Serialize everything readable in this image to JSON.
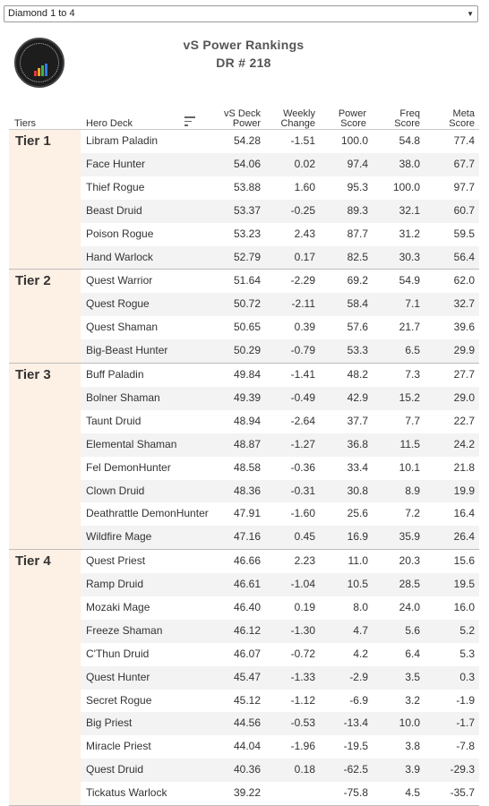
{
  "filter": {
    "selected": "Diamond 1 to 4"
  },
  "header": {
    "title": "vS Power Rankings",
    "subtitle": "DR # 218"
  },
  "columns": {
    "tiers": "Tiers",
    "deck": "Hero Deck",
    "power_l1": "vS Deck",
    "power_l2": "Power",
    "change_l1": "Weekly",
    "change_l2": "Change",
    "pscore_l1": "Power",
    "pscore_l2": "Score",
    "freq_l1": "Freq",
    "freq_l2": "Score",
    "meta_l1": "Meta",
    "meta_l2": "Score"
  },
  "icons": {
    "sort": "sort-icon",
    "dropdown": "chevron-down-icon",
    "logo": "vs-logo-icon"
  },
  "colors": {
    "tier_bg": "#fdf0e4",
    "alt_row": "#f3f3f3"
  },
  "tiers": [
    {
      "name": "Tier 1",
      "decks": [
        {
          "deck": "Libram Paladin",
          "power": "54.28",
          "change": "-1.51",
          "power_score": "100.0",
          "freq": "54.8",
          "meta": "77.4"
        },
        {
          "deck": "Face Hunter",
          "power": "54.06",
          "change": "0.02",
          "power_score": "97.4",
          "freq": "38.0",
          "meta": "67.7"
        },
        {
          "deck": "Thief Rogue",
          "power": "53.88",
          "change": "1.60",
          "power_score": "95.3",
          "freq": "100.0",
          "meta": "97.7"
        },
        {
          "deck": "Beast Druid",
          "power": "53.37",
          "change": "-0.25",
          "power_score": "89.3",
          "freq": "32.1",
          "meta": "60.7"
        },
        {
          "deck": "Poison Rogue",
          "power": "53.23",
          "change": "2.43",
          "power_score": "87.7",
          "freq": "31.2",
          "meta": "59.5"
        },
        {
          "deck": "Hand Warlock",
          "power": "52.79",
          "change": "0.17",
          "power_score": "82.5",
          "freq": "30.3",
          "meta": "56.4"
        }
      ]
    },
    {
      "name": "Tier 2",
      "decks": [
        {
          "deck": "Quest Warrior",
          "power": "51.64",
          "change": "-2.29",
          "power_score": "69.2",
          "freq": "54.9",
          "meta": "62.0"
        },
        {
          "deck": "Quest Rogue",
          "power": "50.72",
          "change": "-2.11",
          "power_score": "58.4",
          "freq": "7.1",
          "meta": "32.7"
        },
        {
          "deck": "Quest Shaman",
          "power": "50.65",
          "change": "0.39",
          "power_score": "57.6",
          "freq": "21.7",
          "meta": "39.6"
        },
        {
          "deck": "Big-Beast Hunter",
          "power": "50.29",
          "change": "-0.79",
          "power_score": "53.3",
          "freq": "6.5",
          "meta": "29.9"
        }
      ]
    },
    {
      "name": "Tier 3",
      "decks": [
        {
          "deck": "Buff Paladin",
          "power": "49.84",
          "change": "-1.41",
          "power_score": "48.2",
          "freq": "7.3",
          "meta": "27.7"
        },
        {
          "deck": "Bolner Shaman",
          "power": "49.39",
          "change": "-0.49",
          "power_score": "42.9",
          "freq": "15.2",
          "meta": "29.0"
        },
        {
          "deck": "Taunt Druid",
          "power": "48.94",
          "change": "-2.64",
          "power_score": "37.7",
          "freq": "7.7",
          "meta": "22.7"
        },
        {
          "deck": "Elemental Shaman",
          "power": "48.87",
          "change": "-1.27",
          "power_score": "36.8",
          "freq": "11.5",
          "meta": "24.2"
        },
        {
          "deck": "Fel DemonHunter",
          "power": "48.58",
          "change": "-0.36",
          "power_score": "33.4",
          "freq": "10.1",
          "meta": "21.8"
        },
        {
          "deck": "Clown Druid",
          "power": "48.36",
          "change": "-0.31",
          "power_score": "30.8",
          "freq": "8.9",
          "meta": "19.9"
        },
        {
          "deck": "Deathrattle DemonHunter",
          "power": "47.91",
          "change": "-1.60",
          "power_score": "25.6",
          "freq": "7.2",
          "meta": "16.4"
        },
        {
          "deck": "Wildfire Mage",
          "power": "47.16",
          "change": "0.45",
          "power_score": "16.9",
          "freq": "35.9",
          "meta": "26.4"
        }
      ]
    },
    {
      "name": "Tier 4",
      "decks": [
        {
          "deck": "Quest Priest",
          "power": "46.66",
          "change": "2.23",
          "power_score": "11.0",
          "freq": "20.3",
          "meta": "15.6"
        },
        {
          "deck": "Ramp Druid",
          "power": "46.61",
          "change": "-1.04",
          "power_score": "10.5",
          "freq": "28.5",
          "meta": "19.5"
        },
        {
          "deck": "Mozaki Mage",
          "power": "46.40",
          "change": "0.19",
          "power_score": "8.0",
          "freq": "24.0",
          "meta": "16.0"
        },
        {
          "deck": "Freeze Shaman",
          "power": "46.12",
          "change": "-1.30",
          "power_score": "4.7",
          "freq": "5.6",
          "meta": "5.2"
        },
        {
          "deck": "C'Thun Druid",
          "power": "46.07",
          "change": "-0.72",
          "power_score": "4.2",
          "freq": "6.4",
          "meta": "5.3"
        },
        {
          "deck": "Quest Hunter",
          "power": "45.47",
          "change": "-1.33",
          "power_score": "-2.9",
          "freq": "3.5",
          "meta": "0.3"
        },
        {
          "deck": "Secret Rogue",
          "power": "45.12",
          "change": "-1.12",
          "power_score": "-6.9",
          "freq": "3.2",
          "meta": "-1.9"
        },
        {
          "deck": "Big Priest",
          "power": "44.56",
          "change": "-0.53",
          "power_score": "-13.4",
          "freq": "10.0",
          "meta": "-1.7"
        },
        {
          "deck": "Miracle Priest",
          "power": "44.04",
          "change": "-1.96",
          "power_score": "-19.5",
          "freq": "3.8",
          "meta": "-7.8"
        },
        {
          "deck": "Quest Druid",
          "power": "40.36",
          "change": "0.18",
          "power_score": "-62.5",
          "freq": "3.9",
          "meta": "-29.3"
        },
        {
          "deck": "Tickatus Warlock",
          "power": "39.22",
          "change": "",
          "power_score": "-75.8",
          "freq": "4.5",
          "meta": "-35.7"
        }
      ]
    }
  ]
}
